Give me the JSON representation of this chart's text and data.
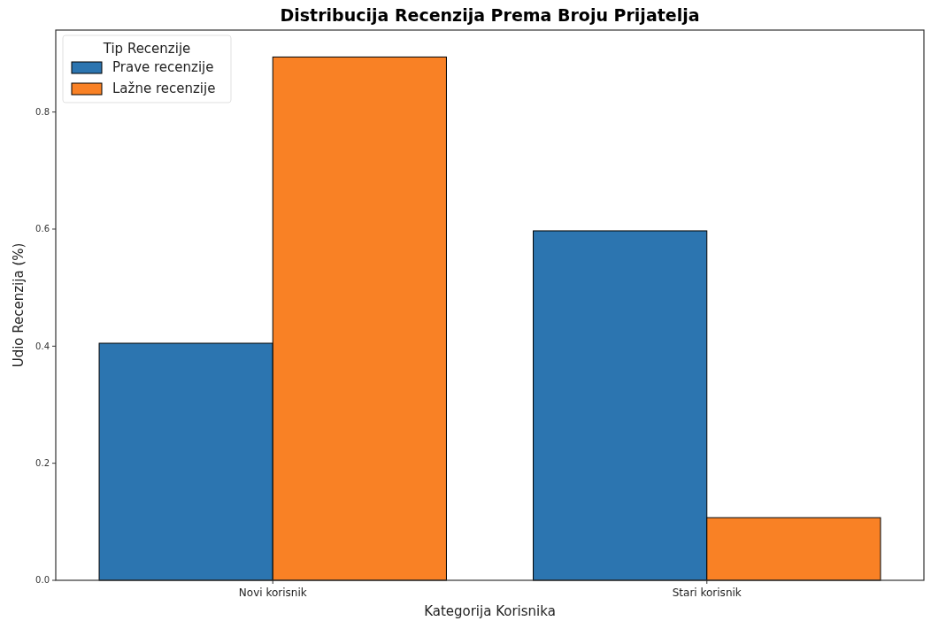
{
  "chart_data": {
    "type": "bar",
    "title": "Distribucija Recenzija Prema Broju Prijatelja",
    "xlabel": "Kategorija Korisnika",
    "ylabel": "Udio Recenzija (%)",
    "legend_title": "Tip Recenzije",
    "categories": [
      "Novi korisnik",
      "Stari korisnik"
    ],
    "series": [
      {
        "name": "Prave recenzije",
        "color": "#2c75b0",
        "values": [
          0.405,
          0.597
        ]
      },
      {
        "name": "Lažne recenzije",
        "color": "#f98125",
        "values": [
          0.894,
          0.107
        ]
      }
    ],
    "ylim": [
      0,
      0.94
    ],
    "yticks": [
      {
        "value": 0,
        "label": "0.0"
      },
      {
        "value": 0.2,
        "label": "0.2"
      },
      {
        "value": 0.4,
        "label": "0.4"
      },
      {
        "value": 0.6,
        "label": "0.6"
      },
      {
        "value": 0.8,
        "label": "0.8"
      }
    ],
    "legend": "top left"
  }
}
